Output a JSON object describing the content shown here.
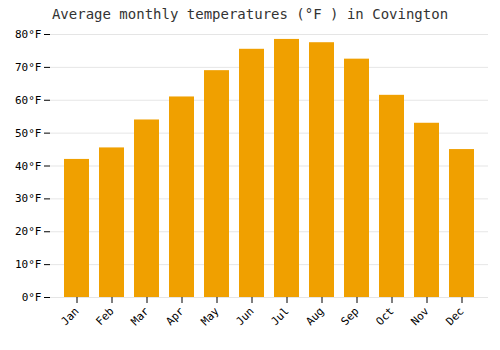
{
  "chart_data": {
    "type": "bar",
    "title": "Average monthly temperatures (°F ) in Covington",
    "categories": [
      "Jan",
      "Feb",
      "Mar",
      "Apr",
      "May",
      "Jun",
      "Jul",
      "Aug",
      "Sep",
      "Oct",
      "Nov",
      "Dec"
    ],
    "values": [
      42,
      45.5,
      54,
      61,
      69,
      75.5,
      78.5,
      77.5,
      72.5,
      61.5,
      53,
      45
    ],
    "color": "#F0A000",
    "ylim": [
      0,
      80
    ],
    "yticks": [
      {
        "value": 0,
        "label": "0°F"
      },
      {
        "value": 10,
        "label": "10°F"
      },
      {
        "value": 20,
        "label": "20°F"
      },
      {
        "value": 30,
        "label": "30°F"
      },
      {
        "value": 40,
        "label": "40°F"
      },
      {
        "value": 50,
        "label": "50°F"
      },
      {
        "value": 60,
        "label": "60°F"
      },
      {
        "value": 70,
        "label": "70°F"
      },
      {
        "value": 80,
        "label": "80°F"
      }
    ],
    "grid": true
  }
}
